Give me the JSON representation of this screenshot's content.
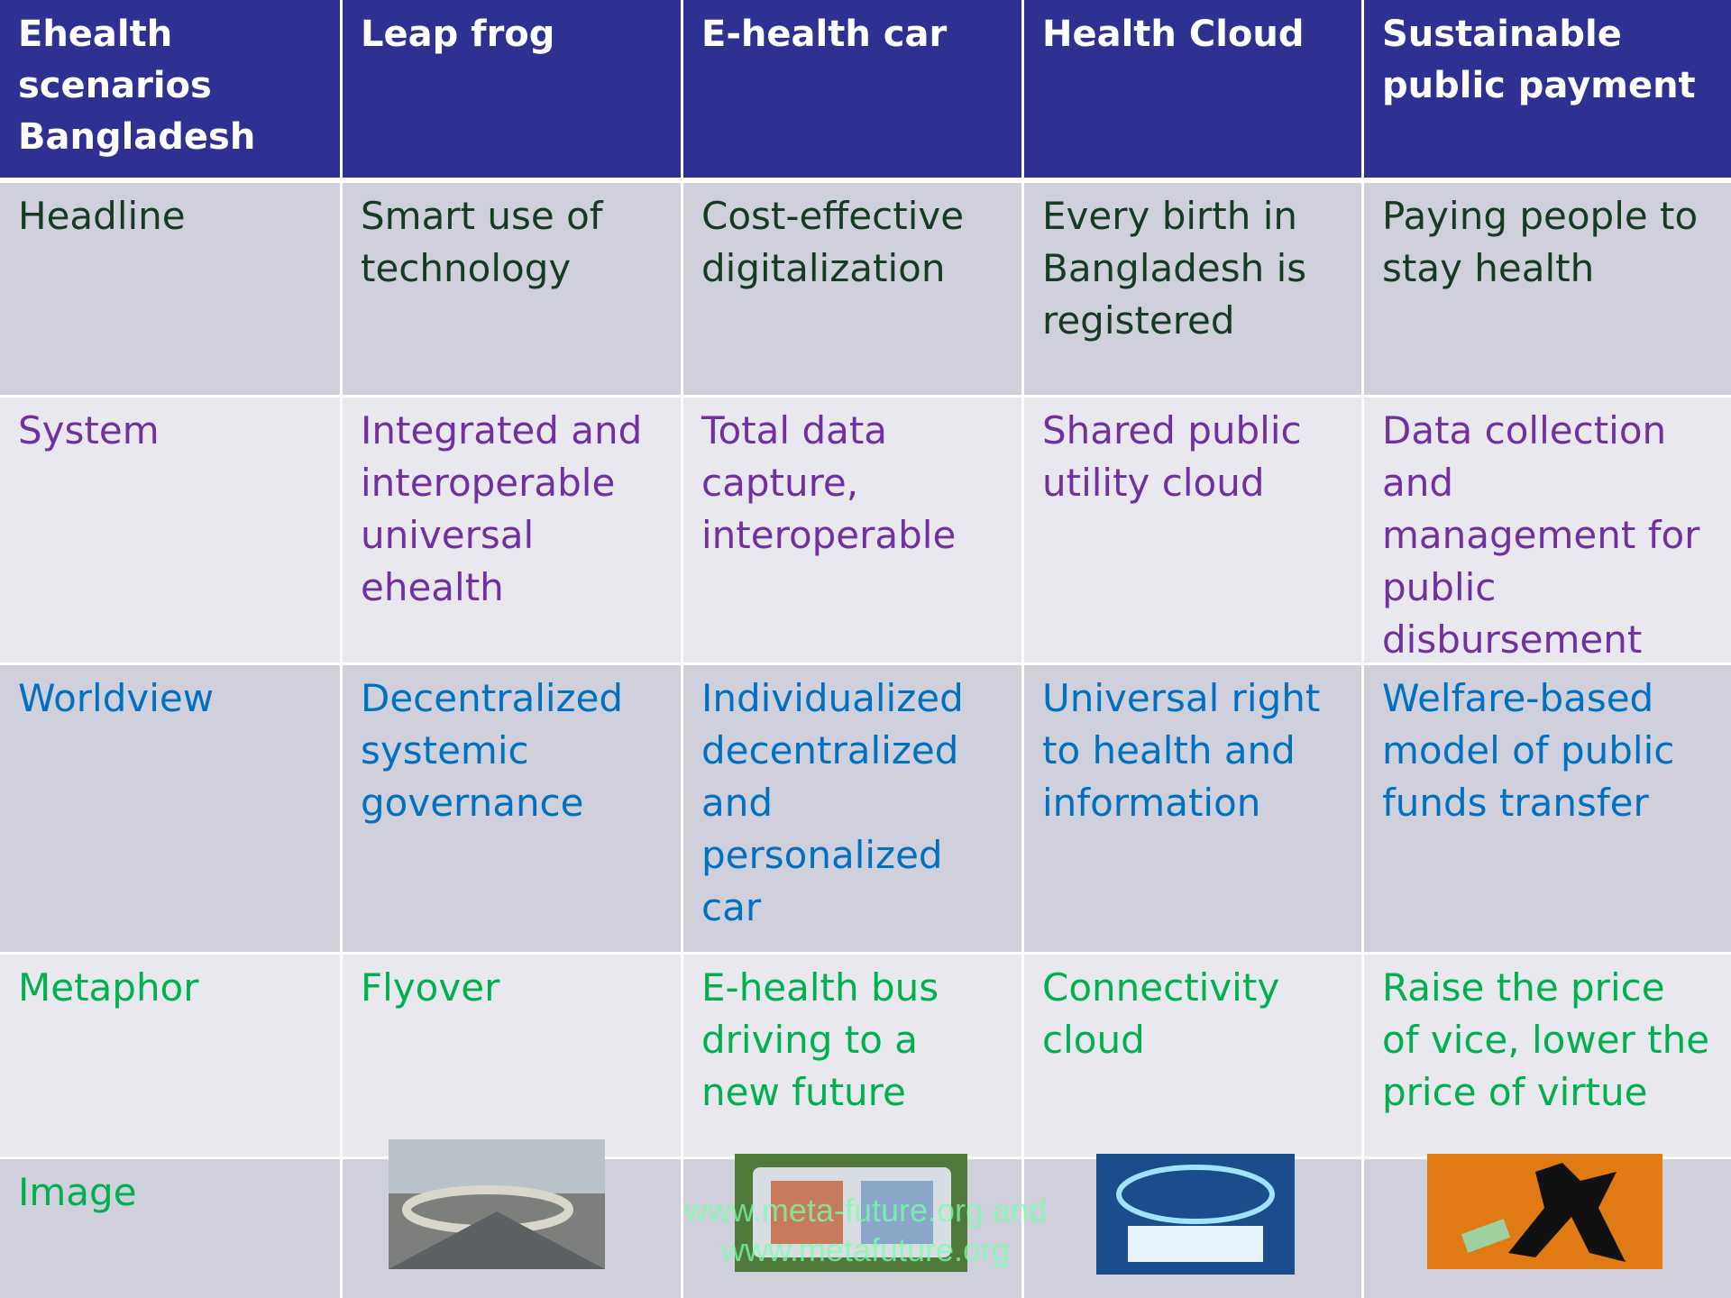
{
  "table": {
    "header": [
      "Ehealth scenarios Bangladesh",
      "Leap frog",
      "E-health car",
      "Health Cloud",
      "Sustainable public payment"
    ],
    "rows": [
      [
        "Headline",
        "Smart use of technology",
        "Cost-effective digitalization",
        "Every birth in Bangladesh is registered",
        "Paying people to stay health"
      ],
      [
        "System",
        "Integrated and interoperable universal ehealth",
        "Total data capture, interoperable",
        "Shared public utility cloud",
        "Data collection and management for public disbursement"
      ],
      [
        "Worldview",
        "Decentralized systemic governance",
        "Individualized decentralized and personalized car",
        "Universal right to health and information",
        "Welfare-based model of public funds transfer"
      ],
      [
        "Metaphor",
        "Flyover",
        "E-health bus driving to a new future",
        "Connectivity cloud",
        "Raise the price of vice, lower the price of virtue"
      ],
      [
        "Image"
      ]
    ]
  },
  "watermark": [
    "www.meta-future.org and",
    "www.metafuture.org"
  ]
}
